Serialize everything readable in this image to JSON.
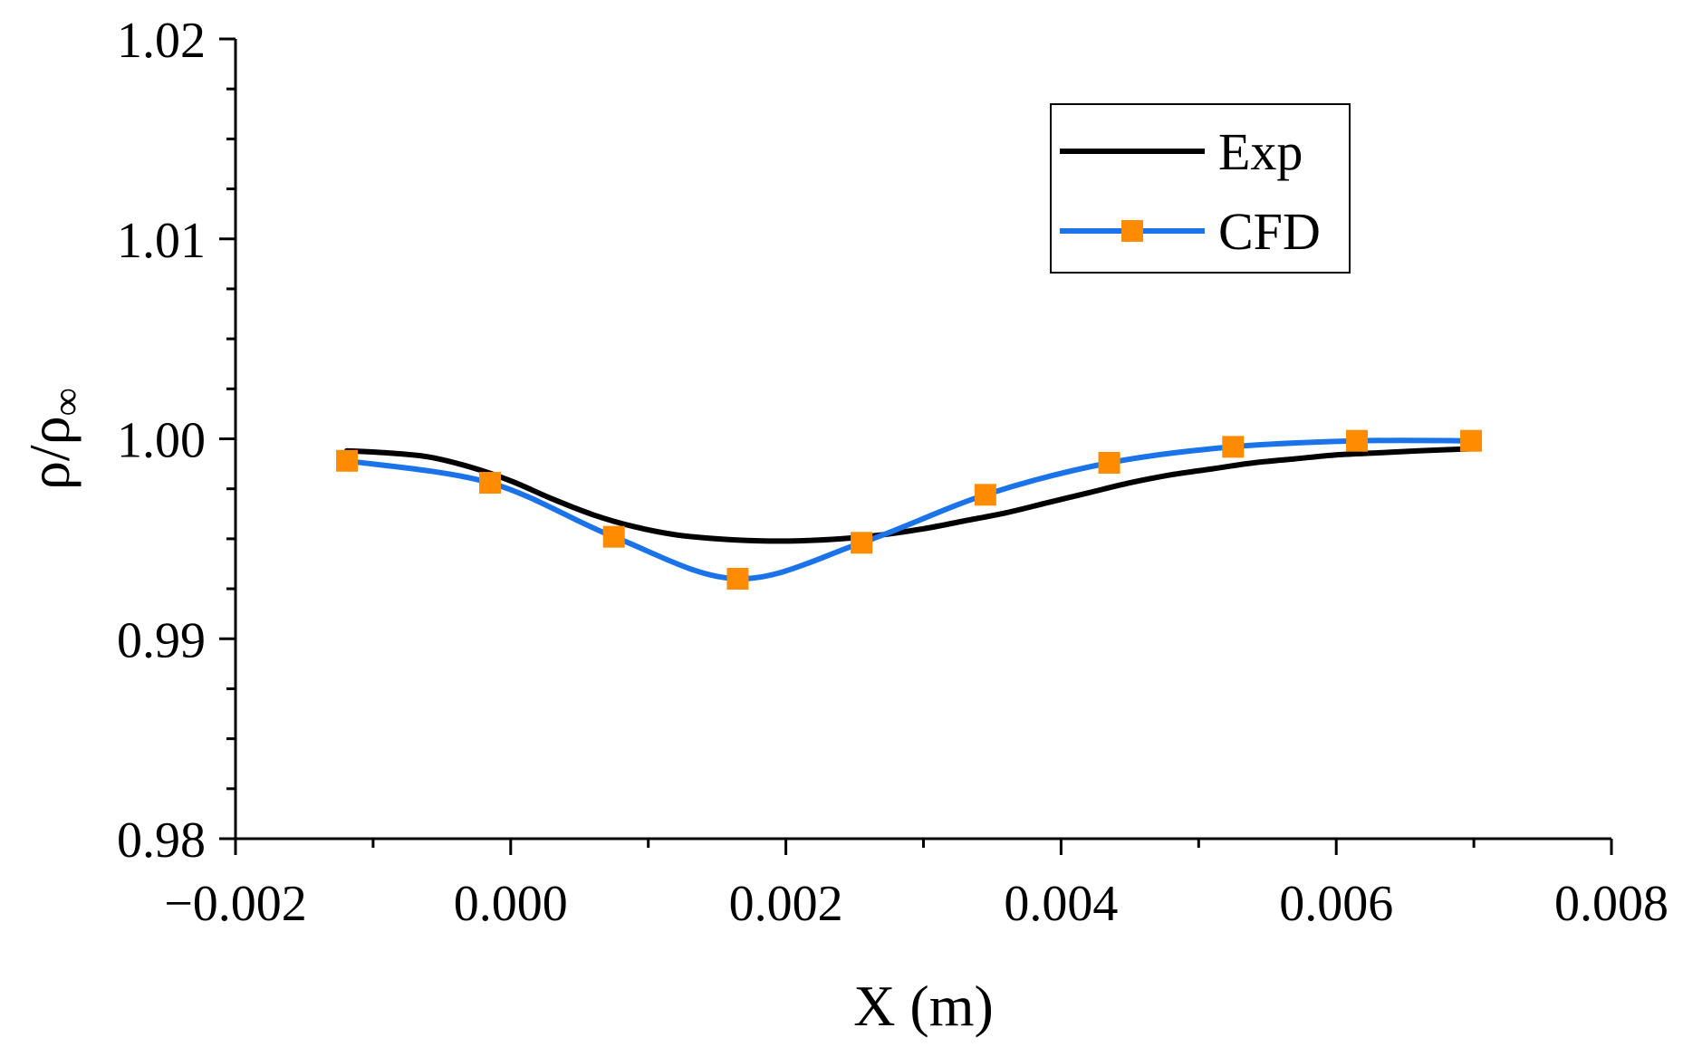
{
  "chart_data": {
    "type": "line",
    "title": "",
    "xlabel": "X (m)",
    "ylabel_main": "ρ/ρ",
    "ylabel_sub": "∞",
    "xlim": [
      -0.002,
      0.008
    ],
    "ylim": [
      0.98,
      1.02
    ],
    "x_ticks": [
      -0.002,
      0.0,
      0.002,
      0.004,
      0.006,
      0.008
    ],
    "x_tick_labels": [
      "−0.002",
      "0.000",
      "0.002",
      "0.004",
      "0.006",
      "0.008"
    ],
    "y_ticks": [
      0.98,
      0.99,
      1.0,
      1.01,
      1.02
    ],
    "y_tick_labels": [
      "0.98",
      "0.99",
      "1.00",
      "1.01",
      "1.02"
    ],
    "grid": false,
    "legend_position": "top-right",
    "series": [
      {
        "name": "Exp",
        "color": "#000000",
        "marker": "none",
        "x": [
          -0.00119,
          -0.0009,
          -0.0006,
          -0.0003,
          0.0,
          0.0003,
          0.0006,
          0.0009,
          0.0012,
          0.0015,
          0.0018,
          0.0021,
          0.0024,
          0.0027,
          0.003,
          0.0033,
          0.0036,
          0.0039,
          0.0042,
          0.0045,
          0.0048,
          0.0051,
          0.0054,
          0.0057,
          0.006,
          0.0063,
          0.0066,
          0.00698
        ],
        "values": [
          0.9994,
          0.9993,
          0.9991,
          0.9986,
          0.9979,
          0.997,
          0.9962,
          0.9956,
          0.9952,
          0.995,
          0.9949,
          0.9949,
          0.995,
          0.9952,
          0.9955,
          0.9959,
          0.9963,
          0.9968,
          0.9973,
          0.9978,
          0.9982,
          0.9985,
          0.9988,
          0.999,
          0.9992,
          0.9993,
          0.9994,
          0.9995
        ]
      },
      {
        "name": "CFD",
        "color": "#1a73e8",
        "marker": "square",
        "marker_color": "#ff8c00",
        "x": [
          -0.00119,
          -0.00015,
          0.00075,
          0.00165,
          0.00255,
          0.00345,
          0.00435,
          0.00525,
          0.00615,
          0.00698
        ],
        "values": [
          0.9989,
          0.9978,
          0.9951,
          0.993,
          0.9948,
          0.9972,
          0.9988,
          0.9996,
          0.9999,
          0.9999
        ]
      }
    ]
  }
}
